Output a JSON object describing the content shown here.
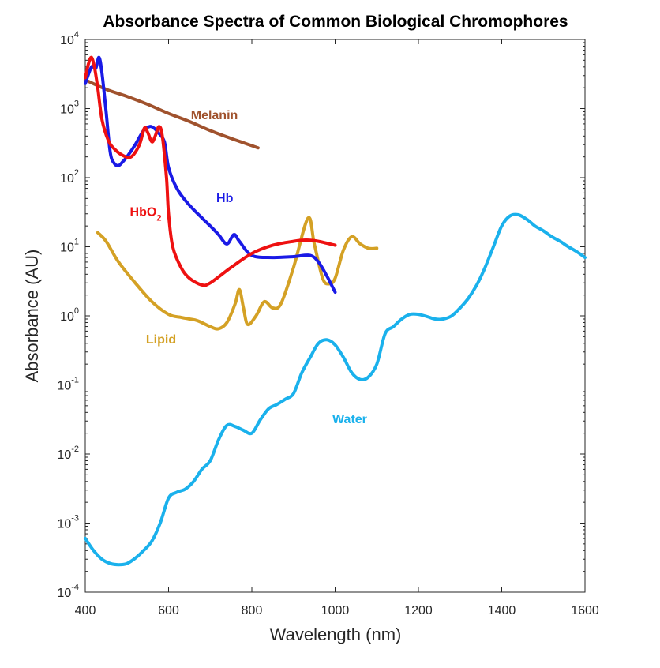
{
  "chart_data": {
    "type": "line",
    "title": "Absorbance Spectra of Common Biological Chromophores",
    "xlabel": "Wavelength (nm)",
    "ylabel": "Absorbance (AU)",
    "xlim": [
      400,
      1600
    ],
    "ylim": [
      0.0001,
      10000
    ],
    "yscale": "log",
    "xticks": [
      {
        "value": 400,
        "label": "400"
      },
      {
        "value": 600,
        "label": "600"
      },
      {
        "value": 800,
        "label": "800"
      },
      {
        "value": 1000,
        "label": "1000"
      },
      {
        "value": 1200,
        "label": "1200"
      },
      {
        "value": 1400,
        "label": "1400"
      },
      {
        "value": 1600,
        "label": "1600"
      }
    ],
    "yticks": [
      {
        "value": 0.0001,
        "base": "10",
        "exp": "-4"
      },
      {
        "value": 0.001,
        "base": "10",
        "exp": "-3"
      },
      {
        "value": 0.01,
        "base": "10",
        "exp": "-2"
      },
      {
        "value": 0.1,
        "base": "10",
        "exp": "-1"
      },
      {
        "value": 1,
        "base": "10",
        "exp": "0"
      },
      {
        "value": 10,
        "base": "10",
        "exp": "1"
      },
      {
        "value": 100,
        "base": "10",
        "exp": "2"
      },
      {
        "value": 1000,
        "base": "10",
        "exp": "3"
      },
      {
        "value": 10000,
        "base": "10",
        "exp": "4"
      }
    ],
    "series": [
      {
        "name": "Melanin",
        "color": "#A0522D",
        "x": [
          400,
          450,
          500,
          550,
          600,
          650,
          700,
          750,
          800,
          815
        ],
        "y": [
          2600,
          1900,
          1500,
          1150,
          850,
          650,
          480,
          370,
          290,
          270
        ]
      },
      {
        "name": "Hb",
        "color": "#1A1AE6",
        "x": [
          400,
          415,
          425,
          433,
          440,
          450,
          460,
          470,
          480,
          490,
          500,
          520,
          540,
          555,
          565,
          575,
          590,
          600,
          620,
          650,
          700,
          720,
          740,
          757,
          770,
          800,
          850,
          900,
          940,
          960,
          980,
          1000
        ],
        "y": [
          2300,
          4000,
          3800,
          5500,
          3300,
          900,
          230,
          160,
          150,
          170,
          200,
          300,
          480,
          550,
          520,
          450,
          330,
          140,
          70,
          40,
          20,
          15,
          11,
          15,
          12,
          7.5,
          7,
          7.2,
          7.5,
          6,
          3.8,
          2.2
        ]
      },
      {
        "name": "HbO2",
        "color": "#EE1111",
        "x": [
          400,
          408,
          415,
          422,
          430,
          440,
          455,
          470,
          490,
          510,
          530,
          542,
          550,
          560,
          568,
          577,
          585,
          595,
          600,
          610,
          630,
          650,
          680,
          700,
          750,
          800,
          850,
          900,
          930,
          960,
          1000
        ],
        "y": [
          2800,
          4500,
          5500,
          4000,
          2000,
          700,
          350,
          260,
          210,
          200,
          300,
          520,
          450,
          330,
          400,
          550,
          400,
          100,
          30,
          10,
          5,
          3.5,
          2.8,
          3,
          5,
          8,
          10.5,
          12,
          12.5,
          12,
          10.5
        ]
      },
      {
        "name": "Lipid",
        "color": "#D4A125",
        "x": [
          430,
          450,
          480,
          520,
          560,
          600,
          630,
          650,
          670,
          700,
          720,
          740,
          760,
          770,
          780,
          790,
          810,
          830,
          850,
          870,
          900,
          935,
          950,
          970,
          985,
          1000,
          1020,
          1040,
          1060,
          1080,
          1100
        ],
        "y": [
          16,
          12,
          6,
          3,
          1.6,
          1.05,
          0.95,
          0.9,
          0.85,
          0.7,
          0.65,
          0.8,
          1.5,
          2.4,
          1.3,
          0.75,
          1,
          1.6,
          1.3,
          1.5,
          5,
          26,
          11,
          3.5,
          2.9,
          3.5,
          9,
          14,
          11,
          9.5,
          9.5
        ]
      },
      {
        "name": "Water",
        "color": "#1AB1EC",
        "x": [
          400,
          420,
          440,
          460,
          480,
          500,
          520,
          540,
          560,
          580,
          600,
          620,
          640,
          660,
          680,
          700,
          720,
          740,
          760,
          780,
          800,
          820,
          840,
          860,
          880,
          900,
          920,
          940,
          960,
          980,
          1000,
          1020,
          1040,
          1060,
          1080,
          1100,
          1120,
          1140,
          1160,
          1180,
          1200,
          1220,
          1240,
          1260,
          1280,
          1300,
          1320,
          1340,
          1360,
          1380,
          1400,
          1420,
          1440,
          1460,
          1480,
          1500,
          1520,
          1540,
          1560,
          1580,
          1600
        ],
        "y": [
          0.0006,
          0.0004,
          0.0003,
          0.00026,
          0.00025,
          0.00026,
          0.00031,
          0.0004,
          0.00055,
          0.001,
          0.0023,
          0.0028,
          0.0031,
          0.004,
          0.006,
          0.008,
          0.016,
          0.026,
          0.025,
          0.022,
          0.02,
          0.031,
          0.045,
          0.052,
          0.062,
          0.075,
          0.15,
          0.25,
          0.4,
          0.45,
          0.38,
          0.25,
          0.15,
          0.12,
          0.13,
          0.2,
          0.55,
          0.7,
          0.9,
          1.05,
          1.05,
          0.98,
          0.9,
          0.9,
          1.0,
          1.3,
          1.8,
          2.8,
          5,
          10,
          20,
          28,
          29,
          25,
          20,
          17,
          14,
          12,
          10,
          8.5,
          7
        ]
      }
    ],
    "annotations": [
      {
        "series": "Melanin",
        "text": "Melanin",
        "x": 710,
        "y": 700
      },
      {
        "series": "Hb",
        "text": "Hb",
        "x": 735,
        "y": 44
      },
      {
        "series": "HbO2",
        "text": "HbO",
        "sub": "2",
        "x": 545,
        "y": 28
      },
      {
        "series": "Lipid",
        "text": "Lipid",
        "x": 582,
        "y": 0.4
      },
      {
        "series": "Water",
        "text": "Water",
        "x": 1035,
        "y": 0.028
      }
    ]
  }
}
